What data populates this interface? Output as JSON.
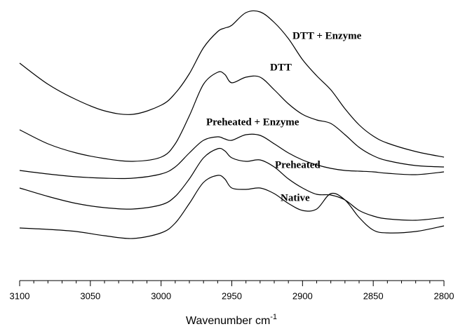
{
  "chart_data": {
    "type": "line",
    "xlabel": "Wavenumber cm",
    "xlabel_sup": "-1",
    "xlim": [
      3100,
      2800
    ],
    "xticks": [
      3100,
      3050,
      3000,
      2950,
      2900,
      2850,
      2800
    ],
    "xminorticks": [
      3090,
      3080,
      3070,
      3060,
      3040,
      3030,
      3020,
      3010,
      2990,
      2980,
      2970,
      2960,
      2940,
      2930,
      2920,
      2910,
      2890,
      2880,
      2870,
      2860,
      2840,
      2830,
      2820,
      2810
    ],
    "ylim": [
      0,
      400
    ],
    "x": [
      3100,
      3080,
      3060,
      3040,
      3020,
      3000,
      2990,
      2980,
      2970,
      2960,
      2955,
      2950,
      2940,
      2930,
      2920,
      2910,
      2900,
      2890,
      2880,
      2870,
      2860,
      2850,
      2840,
      2820,
      2800
    ],
    "series": [
      {
        "name": "DTT + Enzyme",
        "color": "#000000",
        "values": [
          310,
          280,
          258,
          242,
          237,
          250,
          267,
          295,
          332,
          355,
          360,
          364,
          382,
          383,
          368,
          345,
          315,
          292,
          272,
          245,
          222,
          206,
          196,
          184,
          176
        ]
      },
      {
        "name": "DTT",
        "color": "#000000",
        "values": [
          215,
          195,
          182,
          174,
          170,
          176,
          195,
          235,
          280,
          297,
          294,
          282,
          290,
          290,
          272,
          252,
          237,
          229,
          224,
          208,
          190,
          178,
          171,
          164,
          162
        ]
      },
      {
        "name": "Preheated + Enzyme",
        "color": "#000000",
        "values": [
          157,
          152,
          148,
          146,
          146,
          152,
          162,
          182,
          200,
          205,
          202,
          200,
          208,
          207,
          195,
          182,
          172,
          165,
          160,
          157,
          156,
          155,
          153,
          151,
          155
        ]
      },
      {
        "name": "Preheated",
        "color": "#000000",
        "values": [
          132,
          120,
          110,
          104,
          102,
          108,
          120,
          145,
          175,
          188,
          185,
          175,
          170,
          172,
          162,
          145,
          132,
          123,
          122,
          115,
          100,
          92,
          88,
          86,
          90
        ]
      },
      {
        "name": "Native",
        "color": "#000000",
        "values": [
          75,
          73,
          70,
          64,
          60,
          68,
          82,
          110,
          140,
          150,
          145,
          132,
          130,
          132,
          124,
          110,
          100,
          102,
          124,
          115,
          90,
          72,
          68,
          70,
          78
        ]
      }
    ]
  }
}
